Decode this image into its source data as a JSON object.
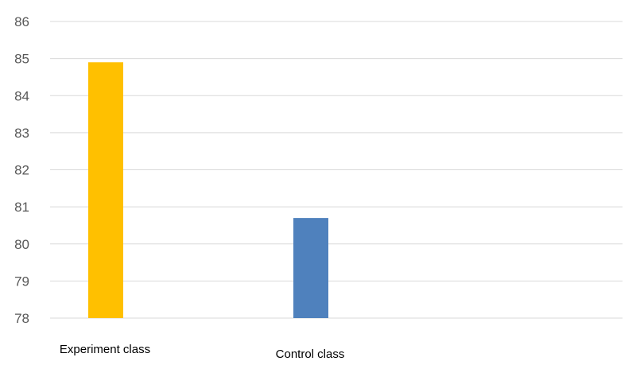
{
  "chart_data": {
    "type": "bar",
    "categories": [
      "Experiment class",
      "Control class"
    ],
    "values": [
      84.9,
      80.7
    ],
    "ylim": [
      78,
      86
    ],
    "yticks": [
      "78",
      "79",
      "80",
      "81",
      "82",
      "83",
      "84",
      "85",
      "86"
    ],
    "grid": true,
    "legend": "none"
  },
  "colors": {
    "bars": [
      "#FFC000",
      "#4F81BD"
    ],
    "gridline": "#D9D9D9",
    "tick_text": "#595959",
    "category_text": "#000000"
  }
}
